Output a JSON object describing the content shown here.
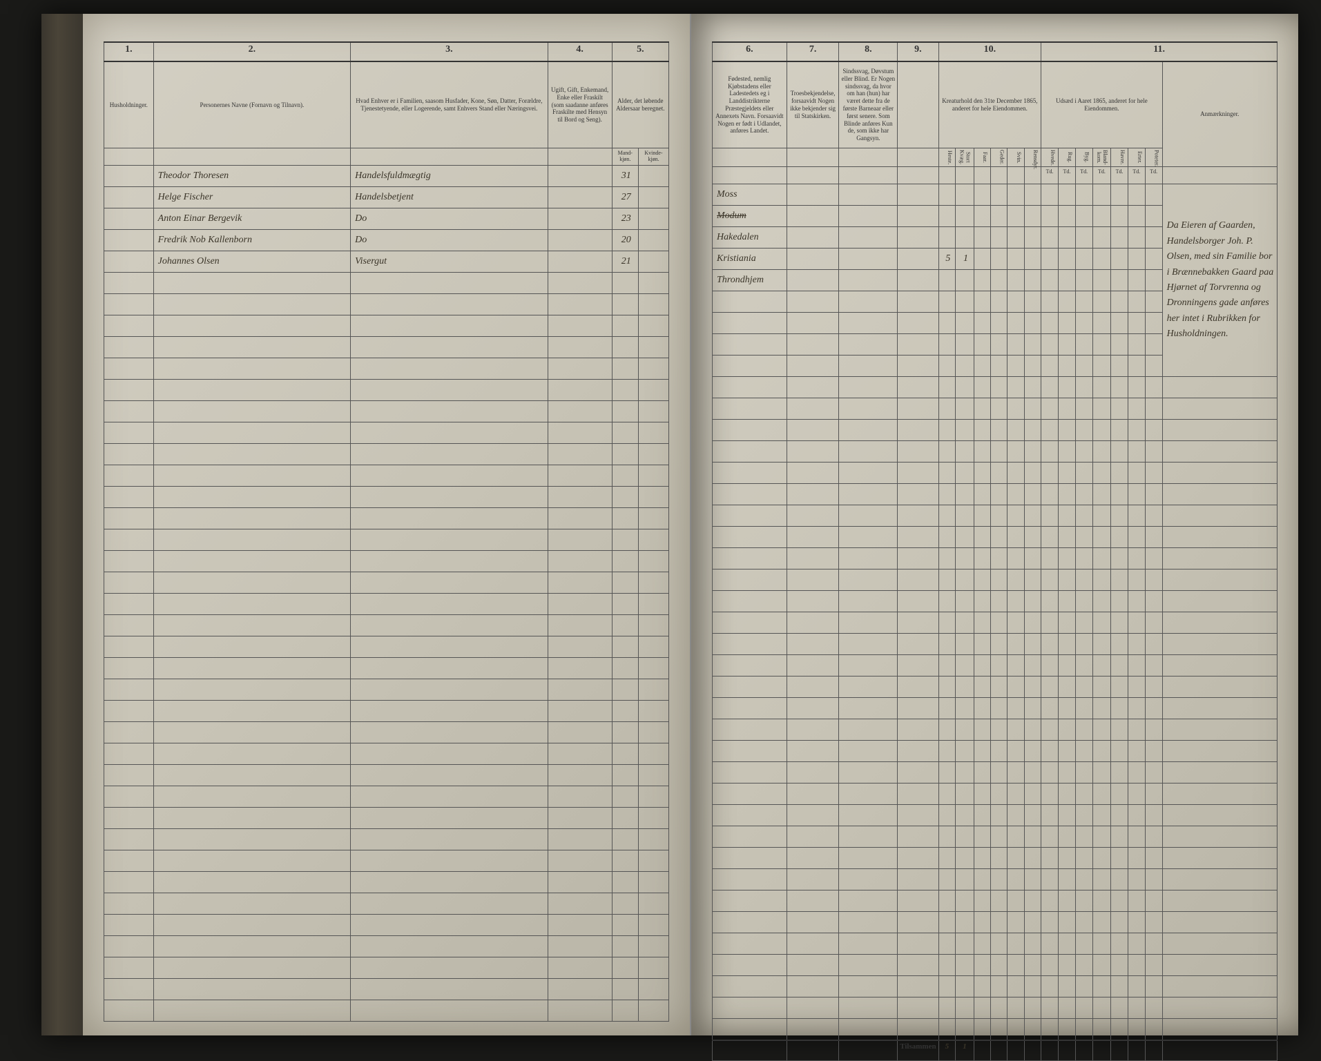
{
  "columns_left": {
    "c1": "1.",
    "c2": "2.",
    "c3": "3.",
    "c4": "4.",
    "c5": "5."
  },
  "columns_right": {
    "c6": "6.",
    "c7": "7.",
    "c8": "8.",
    "c9": "9.",
    "c10": "10.",
    "c11": "11."
  },
  "headers_left": {
    "h1": "Husholdninger.",
    "h2": "Personernes Navne (Fornavn og Tilnavn).",
    "h3": "Hvad Enhver er i Familien, saasom Husfader, Kone, Søn, Datter, Forældre, Tjenestetyende, eller Logerende, samt Enhvers Stand eller Næringsvei.",
    "h4": "Ugift, Gift, Enkemand, Enke eller Fraskilt (som saadanne anføres Fraskilte med Hensyn til Bord og Seng).",
    "h5": "Alder, det løbende Aldersaar beregnet.",
    "h5a": "Mand-kjøn.",
    "h5b": "Kvinde-kjøn."
  },
  "headers_right": {
    "h6": "Fødested, nemlig Kjøbstadens eller Ladestedets eg i Landdistrikterne Præstegjeldets eller Annexets Navn. Forsaavidt Nogen er født i Udlandet, anføres Landet.",
    "h7": "Troesbekjendelse, forsaavidt Nogen ikke bekjender sig til Statskirken.",
    "h8": "Sindssvag, Døvstum eller Blind. Er Nogen sindssvag, da hvor om han (hun) har været dette fra de første Barneaar eller først senere. Som Blinde anføres Kun de, som ikke har Gangsyn.",
    "h9": "",
    "h10": "Kreaturhold den 31te December 1865, anderet for hele Eiendommen.",
    "h11_title": "Udsæd i Aaret 1865, anderet for hele Eiendommen.",
    "h11_remarks": "Anmærkninger.",
    "sub10": [
      "Heste.",
      "Stort Kvæg.",
      "Faar.",
      "Geder.",
      "Svin.",
      "Rensdyr."
    ],
    "sub11": [
      "Hvede.",
      "Rug.",
      "Byg.",
      "Bland-korn.",
      "Havre.",
      "Erter.",
      "Poteter."
    ],
    "unit": "Td."
  },
  "rows": [
    {
      "name": "Theodor Thoresen",
      "role": "Handelsfuldmægtig",
      "age_m": "31",
      "birthplace": "Moss"
    },
    {
      "name": "Helge Fischer",
      "role": "Handelsbetjent",
      "age_m": "27",
      "birthplace": "Modum",
      "birthplace_struck": true
    },
    {
      "name": "Anton Einar Bergevik",
      "role": "Do",
      "age_m": "23",
      "birthplace": "Hakedalen"
    },
    {
      "name": "Fredrik Nob Kallenborn",
      "role": "Do",
      "age_m": "20",
      "birthplace": "Kristiania"
    },
    {
      "name": "Johannes Olsen",
      "role": "Visergut",
      "age_m": "21",
      "birthplace": "Throndhjem"
    }
  ],
  "livestock_row1": {
    "heste": "5",
    "kvæg": "1"
  },
  "remarks_text": "Da Eieren af Gaarden, Handelsborger Joh. P. Olsen, med sin Familie bor i Brænnebakken Gaard paa Hjørnet af Torvrenna og Dronningens gade anføres her intet i Rubrikken for Husholdningen.",
  "sum_label": "Tilsammen",
  "sum_heste": "5",
  "sum_kvæg": "1",
  "empty_rows": 35
}
